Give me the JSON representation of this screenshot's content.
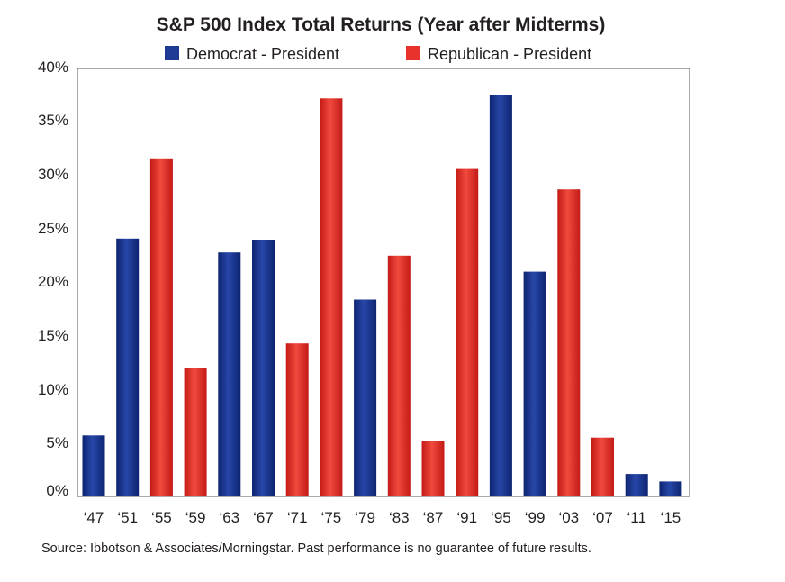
{
  "colors": {
    "democrat": "#1f3a93",
    "republican": "#e8322b",
    "axis": "#555555",
    "text": "#231f20"
  },
  "chart_data": {
    "type": "bar",
    "title": "S&P 500 Index Total Returns (Year after Midterms)",
    "legend": [
      {
        "name": "Democrat - President",
        "color": "#1f3a93"
      },
      {
        "name": "Republican - President",
        "color": "#e8322b"
      }
    ],
    "legend_position": "top",
    "categories": [
      "‘47",
      "‘51",
      "‘55",
      "‘59",
      "‘63",
      "‘67",
      "‘71",
      "‘75",
      "‘79",
      "‘83",
      "‘87",
      "‘91",
      "‘95",
      "‘99",
      "‘03",
      "‘07",
      "‘11",
      "‘15"
    ],
    "values": [
      5.7,
      24.1,
      31.6,
      12.0,
      22.8,
      24.0,
      14.3,
      37.2,
      18.4,
      22.5,
      5.2,
      30.6,
      37.5,
      21.0,
      28.7,
      5.5,
      2.1,
      1.4
    ],
    "party": [
      "Democrat",
      "Democrat",
      "Republican",
      "Republican",
      "Democrat",
      "Democrat",
      "Republican",
      "Republican",
      "Democrat",
      "Republican",
      "Republican",
      "Republican",
      "Democrat",
      "Democrat",
      "Republican",
      "Republican",
      "Democrat",
      "Democrat"
    ],
    "yticks": [
      "0%",
      "5%",
      "10%",
      "15%",
      "20%",
      "25%",
      "30%",
      "35%",
      "40%"
    ],
    "ylim": [
      0,
      40
    ],
    "grid": false
  },
  "source_text": "Source: Ibbotson & Associates/Morningstar. Past performance is no guarantee of future results."
}
